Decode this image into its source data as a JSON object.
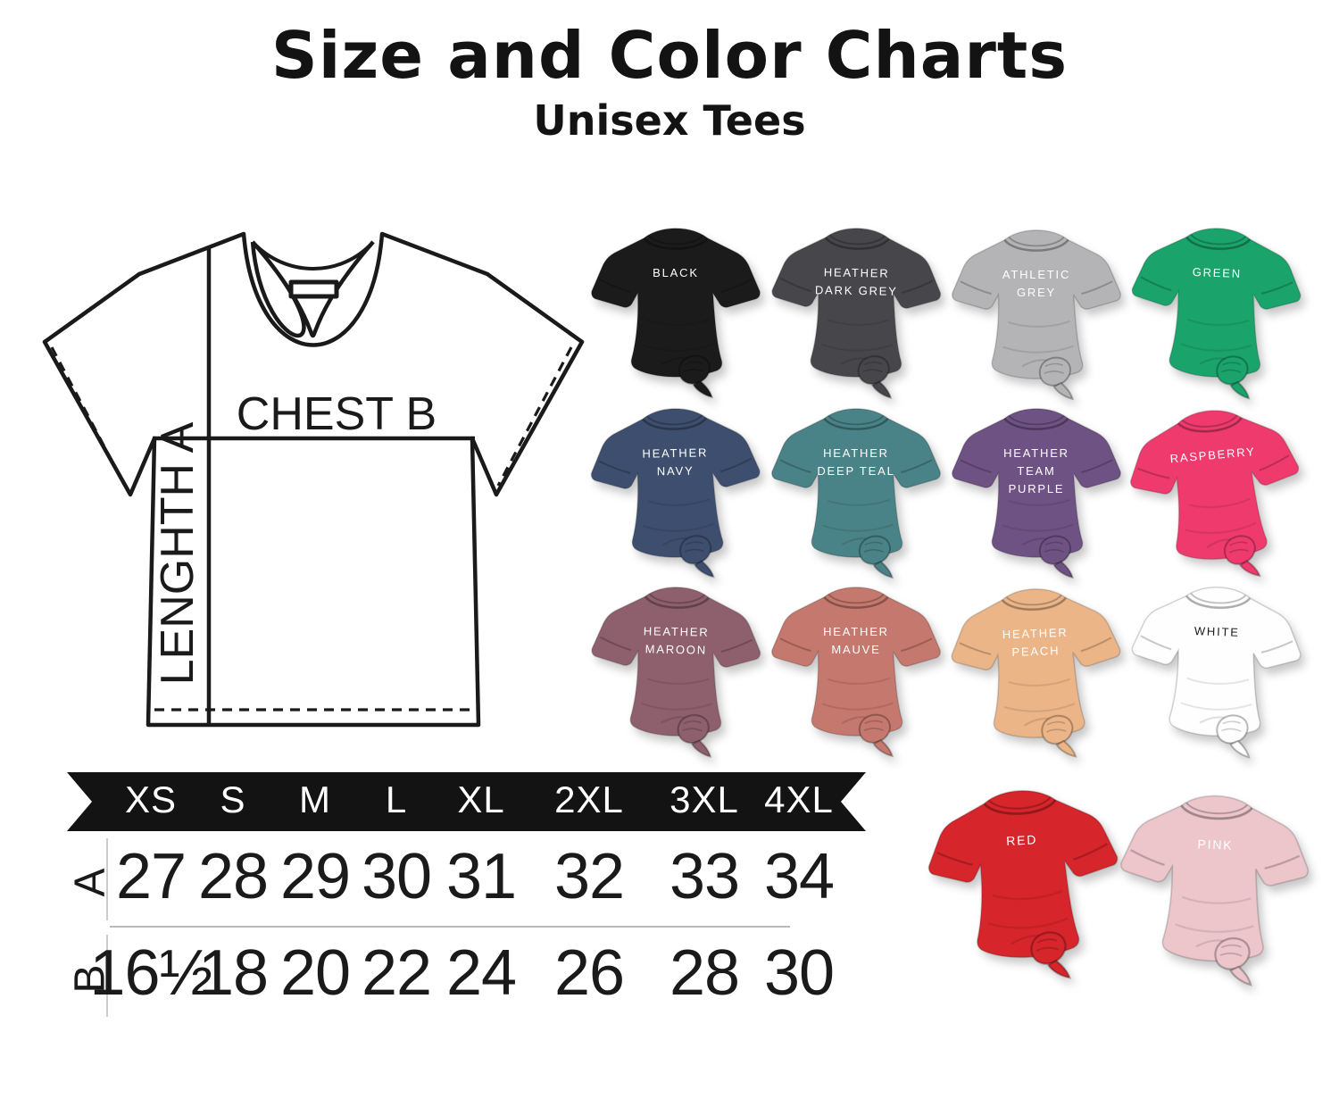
{
  "page": {
    "title": "Size and Color Charts",
    "subtitle": "Unisex Tees"
  },
  "diagram": {
    "chest_label": "CHEST B",
    "length_label": "LENGHTH A"
  },
  "ribbon_color": "#131313",
  "colors": [
    {
      "name": "black",
      "label": "BLACK",
      "hex": "#1b1b1b",
      "text_color": "#ffffff"
    },
    {
      "name": "heather-dark-grey",
      "label": "HEATHER\nDARK GREY",
      "hex": "#47474b",
      "text_color": "#ffffff"
    },
    {
      "name": "athletic-grey",
      "label": "ATHLETIC\nGREY",
      "hex": "#b4b4b6",
      "text_color": "#ffffff"
    },
    {
      "name": "green",
      "label": "GREEN",
      "hex": "#1aa36b",
      "text_color": "#ffffff"
    },
    {
      "name": "heather-navy",
      "label": "HEATHER\nNAVY",
      "hex": "#3e4e6e",
      "text_color": "#ffffff"
    },
    {
      "name": "heather-deep-teal",
      "label": "HEATHER\nDEEP TEAL",
      "hex": "#4a8387",
      "text_color": "#ffffff"
    },
    {
      "name": "heather-team-purple",
      "label": "HEATHER\nTEAM\nPURPLE",
      "hex": "#6f5284",
      "text_color": "#ffffff"
    },
    {
      "name": "raspberry",
      "label": "RASPBERRY",
      "hex": "#ee3a6c",
      "text_color": "#ffffff"
    },
    {
      "name": "heather-maroon",
      "label": "HEATHER\nMAROON",
      "hex": "#8e5f6c",
      "text_color": "#ffffff"
    },
    {
      "name": "heather-mauve",
      "label": "HEATHER\nMAUVE",
      "hex": "#c5786d",
      "text_color": "#ffffff"
    },
    {
      "name": "heather-peach",
      "label": "HEATHER\nPEACH",
      "hex": "#ebb588",
      "text_color": "#ffffff"
    },
    {
      "name": "white",
      "label": "WHITE",
      "hex": "#fefefe",
      "text_color": "#1b1b1b"
    },
    {
      "name": "red",
      "label": "RED",
      "hex": "#d6252b",
      "text_color": "#ffffff"
    },
    {
      "name": "pink",
      "label": "PINK",
      "hex": "#edc6cb",
      "text_color": "#ffffff"
    }
  ],
  "size_table": {
    "sizes": [
      "XS",
      "S",
      "M",
      "L",
      "XL",
      "2XL",
      "3XL",
      "4XL"
    ],
    "rows": [
      {
        "label": "A",
        "values": [
          "27",
          "28",
          "29",
          "30",
          "31",
          "32",
          "33",
          "34"
        ]
      },
      {
        "label": "B",
        "values": [
          "16½",
          "18",
          "20",
          "22",
          "24",
          "26",
          "28",
          "30"
        ]
      }
    ]
  }
}
